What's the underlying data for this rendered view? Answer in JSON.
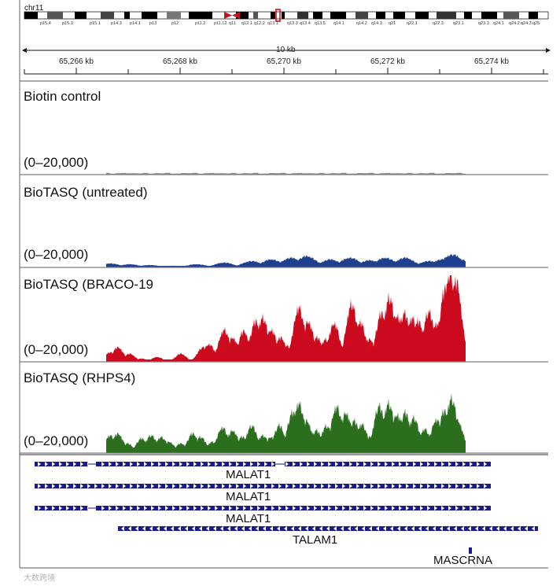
{
  "ideogram": {
    "chromosome": "chr11",
    "bands": [
      "p15.4",
      "p15.3",
      "p15.1",
      "p14.3",
      "p14.1",
      "p13",
      "p12",
      "p11.2",
      "p11.12",
      "q11",
      "q12.1",
      "q12.2",
      "q13.1",
      "q13.3",
      "q13.4",
      "q13.5",
      "q14.1",
      "q14.2",
      "q14.3",
      "q21",
      "q22.1",
      "q22.3",
      "q23.1",
      "q23.3",
      "q24.1",
      "q24.2",
      "q24.3",
      "q25"
    ]
  },
  "ruler": {
    "span_label": "10 kb",
    "ticks": [
      "65,266 kb",
      "65,268 kb",
      "65,270 kb",
      "65,272 kb",
      "65,274 kb"
    ]
  },
  "tracks": [
    {
      "name": "Biotin control",
      "range": "(0–20,000)",
      "color": "#8c8c8c"
    },
    {
      "name": "BioTASQ (untreated)",
      "range": "(0–20,000)",
      "color": "#1f3f8f"
    },
    {
      "name": "BioTASQ (BRACO-19",
      "range": "(0–20,000)",
      "color": "#cc0a1e"
    },
    {
      "name": "BioTASQ (RHPS4)",
      "range": "(0–20,000)",
      "color": "#2a6e1e"
    }
  ],
  "genes": [
    {
      "name": "MALAT1",
      "strand": "+"
    },
    {
      "name": "MALAT1",
      "strand": "+"
    },
    {
      "name": "MALAT1",
      "strand": "+"
    },
    {
      "name": "TALAM1",
      "strand": "-"
    },
    {
      "name": "MASCRNA",
      "strand": "+"
    }
  ],
  "gene_color": "#1a1a8c",
  "watermark": "大数跨境"
}
